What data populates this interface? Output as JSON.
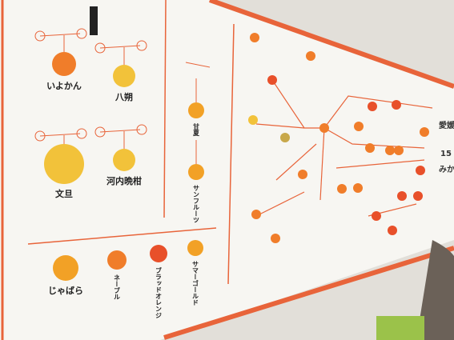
{
  "wall_display": {
    "top_fruits": [
      {
        "label": "いよかん"
      },
      {
        "label": "八朔"
      },
      {
        "label": "文旦"
      },
      {
        "label": "河内晩柑"
      }
    ],
    "middle_fruits": [
      {
        "label": "甘夏"
      },
      {
        "label": "サンフルーツ"
      }
    ],
    "bottom_fruits": [
      {
        "label": "じゃばら"
      },
      {
        "label": "ネーブル"
      },
      {
        "label": "ブラッドオレンジ"
      },
      {
        "label": "サマーゴールド"
      }
    ],
    "side_heading": [
      "愛媛",
      "15",
      "みかんの"
    ]
  }
}
